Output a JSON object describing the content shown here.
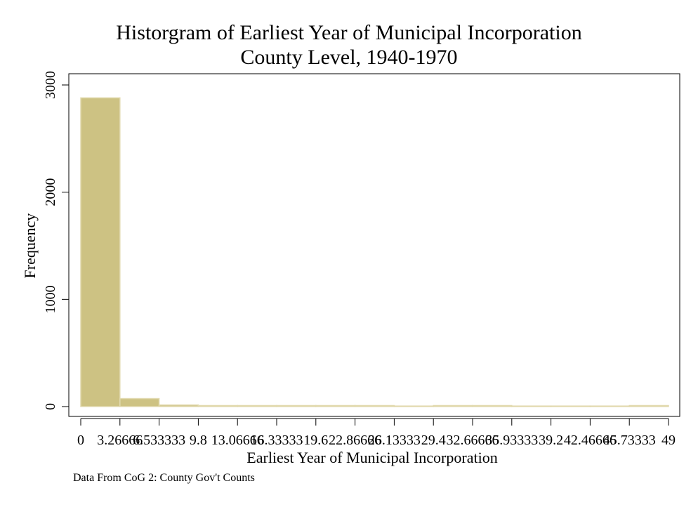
{
  "chart_data": {
    "type": "bar",
    "title": "Historgram of Earliest Year of Municipal Incorporation",
    "subtitle": "County Level, 1940-1970",
    "xlabel": "Earliest Year of Municipal Incorporation",
    "ylabel": "Frequency",
    "note": "Data From CoG 2: County Gov't Counts",
    "bin_width": 3.26666,
    "bins_start": [
      0,
      3.26666,
      6.53333,
      9.8,
      13.06666,
      16.33333,
      19.6,
      22.86666,
      26.13333,
      29.4,
      32.66666,
      35.93333,
      39.2,
      42.46666,
      45.73333
    ],
    "values": [
      2880,
      75,
      15,
      8,
      3,
      2,
      2,
      1,
      0,
      1,
      1,
      0,
      0,
      0,
      1
    ],
    "x_ticks": [
      "0",
      "3.26666",
      "6.533333",
      "9.8",
      "13.06666",
      "16.33333",
      "19.6",
      "22.86666",
      "26.13333",
      "29.4",
      "32.66666",
      "35.93333",
      "39.2",
      "42.46666",
      "45.73333",
      "49"
    ],
    "xlim": [
      0,
      49
    ],
    "y_ticks": [
      "0",
      "1000",
      "2000",
      "3000"
    ],
    "ylim": [
      0,
      3100
    ],
    "bar_color": "#cdc283",
    "bar_edge": "#e2dab0",
    "grid": false
  }
}
